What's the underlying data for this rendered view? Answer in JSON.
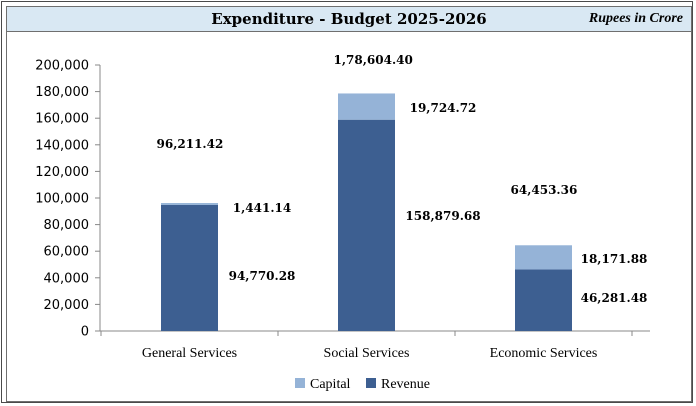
{
  "header": {
    "title": "Expenditure - Budget 2025-2026",
    "units": "Rupees in Crore"
  },
  "chart_data": {
    "type": "bar",
    "stacked": true,
    "title": "Expenditure - Budget 2025-2026",
    "units_label": "Rupees in Crore",
    "categories": [
      "General Services",
      "Social Services",
      "Economic Services"
    ],
    "series": [
      {
        "name": "Revenue",
        "color": "#3d5f91",
        "values": [
          94770.28,
          158879.68,
          46281.48
        ],
        "labels": [
          "94,770.28",
          "158,879.68",
          "46,281.48"
        ]
      },
      {
        "name": "Capital",
        "color": "#95b3d7",
        "values": [
          1441.14,
          19724.72,
          18171.88
        ],
        "labels": [
          "1,441.14",
          "19,724.72",
          "18,171.88"
        ]
      }
    ],
    "totals": [
      96211.42,
      178604.4,
      64453.36
    ],
    "total_labels": [
      "96,211.42",
      "1,78,604.40",
      "64,453.36"
    ],
    "ylim": [
      0,
      200000
    ],
    "yticks": [
      0,
      20000,
      40000,
      60000,
      80000,
      100000,
      120000,
      140000,
      160000,
      180000,
      200000
    ],
    "ytick_labels": [
      "0",
      "20,000",
      "40,000",
      "60,000",
      "80,000",
      "100,000",
      "120,000",
      "140,000",
      "160,000",
      "180,000",
      "200,000"
    ],
    "legend_order": [
      "Capital",
      "Revenue"
    ],
    "legend_position": "bottom-center",
    "grid": false
  }
}
